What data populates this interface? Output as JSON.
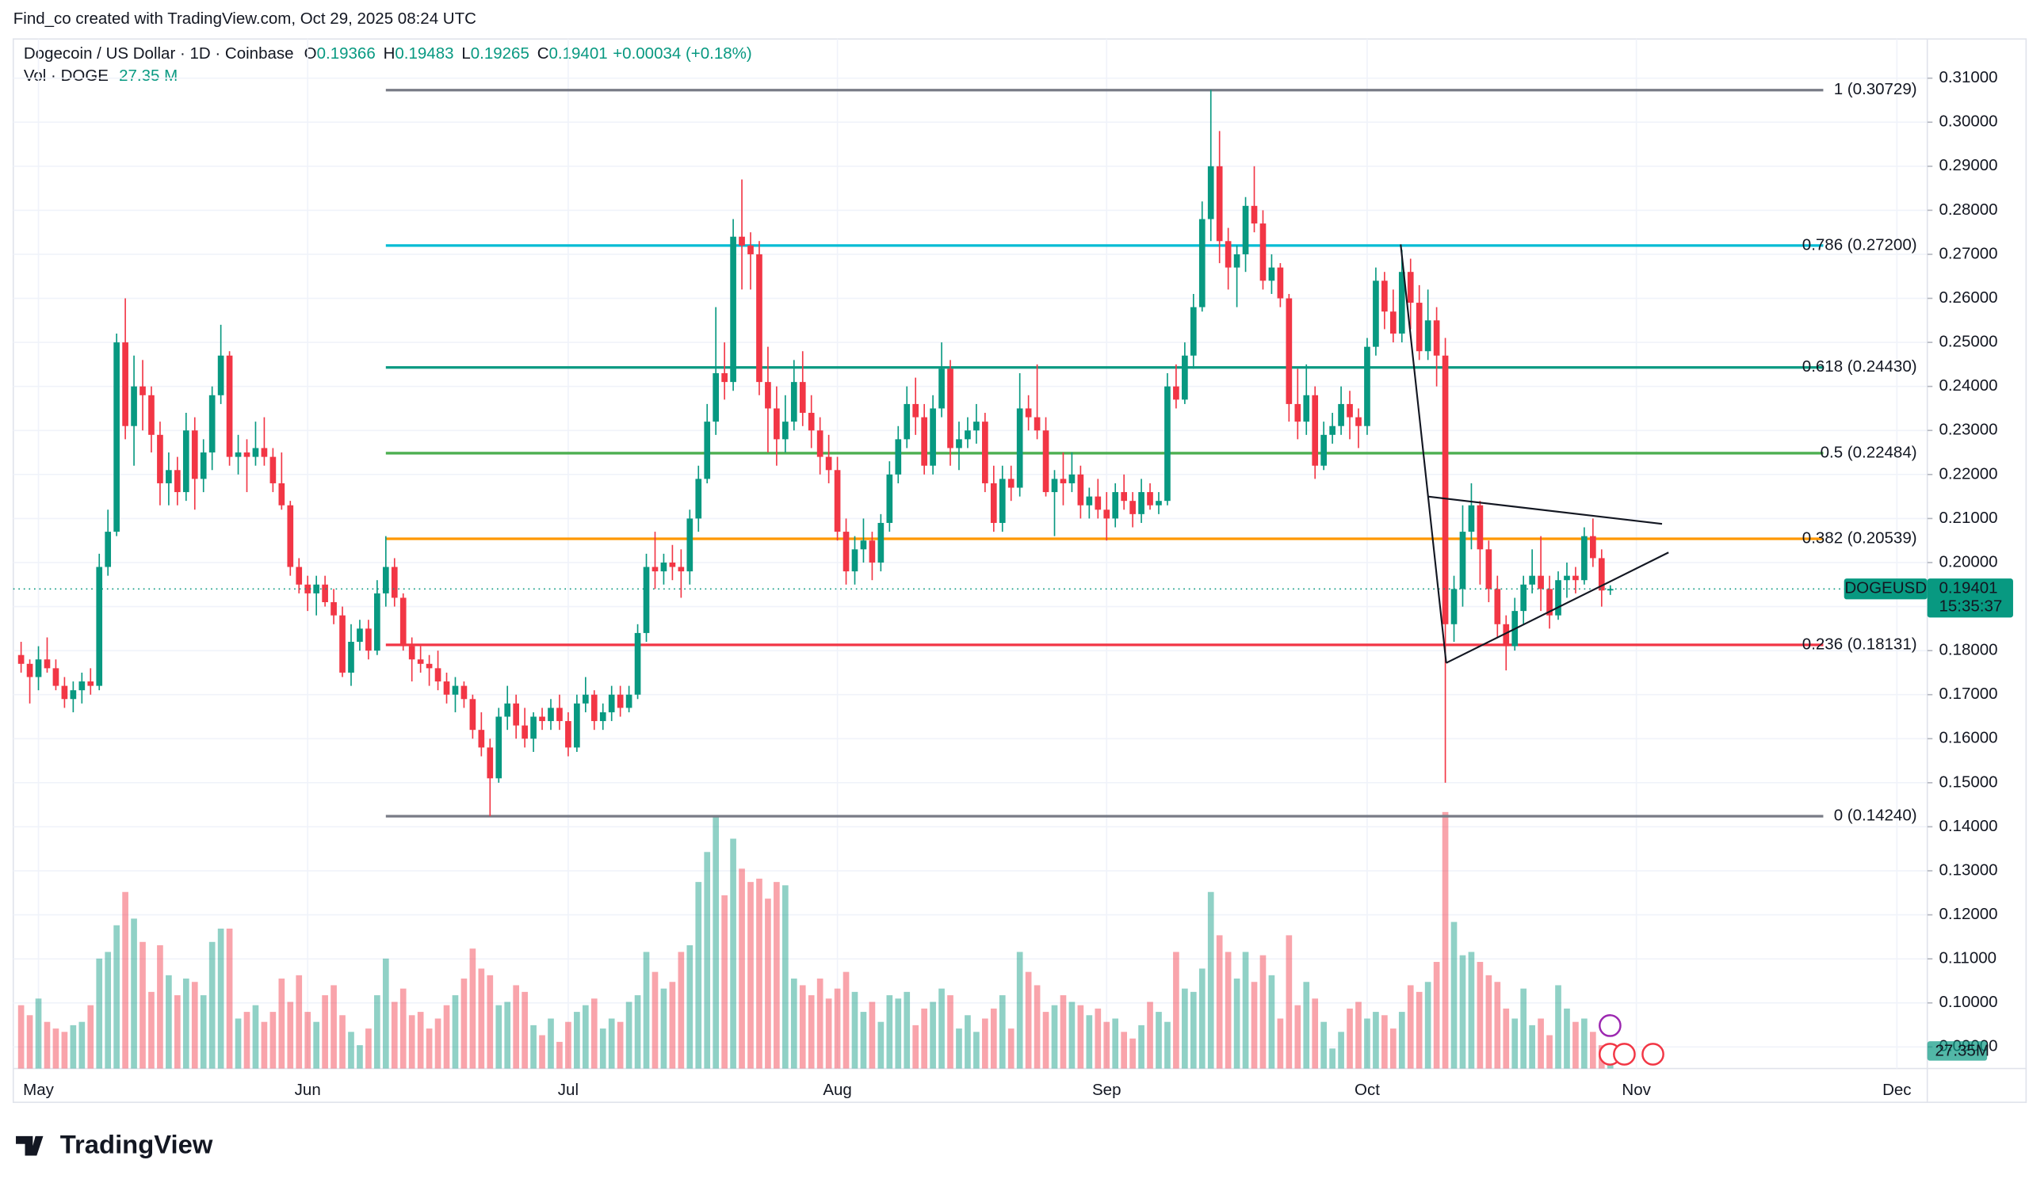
{
  "header": {
    "credit": "Find_co created with TradingView.com, Oct 29, 2025 08:24 UTC",
    "symbol": "Dogecoin / US Dollar · 1D · Coinbase",
    "o": "O",
    "h": "H",
    "l": "L",
    "c": "C",
    "change": "+0.00034 (+0.18%)",
    "vol_title": "Vol · DOGE",
    "vol_value": "27.35 M",
    "ticker": "DOGEUSD",
    "countdown": "15:35:37",
    "volume_badge": "27.35M",
    "logo": "TradingView"
  },
  "chart_data": {
    "type": "candlestick",
    "up_color": "#089981",
    "down_color": "#f23645",
    "grid": true,
    "ylim": [
      0.0851,
      0.3248
    ],
    "yticks": [
      {
        "value": 0.31,
        "label": "0.31000"
      },
      {
        "value": 0.3,
        "label": "0.30000"
      },
      {
        "value": 0.29,
        "label": "0.29000"
      },
      {
        "value": 0.28,
        "label": "0.28000"
      },
      {
        "value": 0.27,
        "label": "0.27000"
      },
      {
        "value": 0.26,
        "label": "0.26000"
      },
      {
        "value": 0.25,
        "label": "0.25000"
      },
      {
        "value": 0.24,
        "label": "0.24000"
      },
      {
        "value": 0.23,
        "label": "0.23000"
      },
      {
        "value": 0.22,
        "label": "0.22000"
      },
      {
        "value": 0.21,
        "label": "0.21000"
      },
      {
        "value": 0.2,
        "label": "0.20000"
      },
      {
        "value": 0.19,
        "label": "0.19000"
      },
      {
        "value": 0.18,
        "label": "0.18000"
      },
      {
        "value": 0.17,
        "label": "0.17000"
      },
      {
        "value": 0.16,
        "label": "0.16000"
      },
      {
        "value": 0.15,
        "label": "0.15000"
      },
      {
        "value": 0.14,
        "label": "0.14000"
      },
      {
        "value": 0.13,
        "label": "0.13000"
      },
      {
        "value": 0.12,
        "label": "0.12000"
      },
      {
        "value": 0.11,
        "label": "0.11000"
      },
      {
        "value": 0.1,
        "label": "0.10000"
      },
      {
        "value": 0.09,
        "label": "0.09000"
      }
    ],
    "xlim": [
      -0.9,
      219.5
    ],
    "xticks": [
      {
        "value": 2,
        "label": "May"
      },
      {
        "value": 33,
        "label": "Jun"
      },
      {
        "value": 63,
        "label": "Jul"
      },
      {
        "value": 94,
        "label": "Aug"
      },
      {
        "value": 125,
        "label": "Sep"
      },
      {
        "value": 155,
        "label": "Oct"
      },
      {
        "value": 186,
        "label": "Nov"
      },
      {
        "value": 216,
        "label": "Dec"
      }
    ],
    "volume_ylim": [
      0,
      400
    ],
    "fib": {
      "prices": [
        0.30729,
        0.272,
        0.2443,
        0.22484,
        0.20539,
        0.18131,
        0.1424
      ],
      "labels": [
        "1 (0.30729)",
        "0.786 (0.27200)",
        "0.618 (0.24430)",
        "0.5 (0.22484)",
        "0.382 (0.20539)",
        "0.236 (0.18131)",
        "0 (0.14240)"
      ],
      "colors": [
        "#787b86",
        "#00bcd4",
        "#089981",
        "#4caf50",
        "#ff9800",
        "#f23645",
        "#787b86"
      ]
    },
    "ohlc": [
      [
        0.179,
        0.182,
        0.175,
        0.177
      ],
      [
        0.177,
        0.178,
        0.168,
        0.174
      ],
      [
        0.174,
        0.181,
        0.171,
        0.178
      ],
      [
        0.178,
        0.183,
        0.175,
        0.176
      ],
      [
        0.176,
        0.178,
        0.171,
        0.172
      ],
      [
        0.172,
        0.174,
        0.167,
        0.169
      ],
      [
        0.169,
        0.173,
        0.166,
        0.171
      ],
      [
        0.171,
        0.175,
        0.168,
        0.173
      ],
      [
        0.173,
        0.176,
        0.17,
        0.172
      ],
      [
        0.172,
        0.202,
        0.171,
        0.199
      ],
      [
        0.199,
        0.212,
        0.197,
        0.207
      ],
      [
        0.207,
        0.252,
        0.206,
        0.25
      ],
      [
        0.25,
        0.26,
        0.228,
        0.231
      ],
      [
        0.231,
        0.247,
        0.222,
        0.24
      ],
      [
        0.24,
        0.246,
        0.23,
        0.238
      ],
      [
        0.238,
        0.24,
        0.225,
        0.229
      ],
      [
        0.229,
        0.232,
        0.213,
        0.218
      ],
      [
        0.218,
        0.225,
        0.213,
        0.221
      ],
      [
        0.221,
        0.224,
        0.213,
        0.216
      ],
      [
        0.216,
        0.234,
        0.214,
        0.23
      ],
      [
        0.23,
        0.233,
        0.212,
        0.219
      ],
      [
        0.219,
        0.228,
        0.216,
        0.225
      ],
      [
        0.225,
        0.24,
        0.221,
        0.238
      ],
      [
        0.238,
        0.254,
        0.236,
        0.247
      ],
      [
        0.247,
        0.248,
        0.222,
        0.224
      ],
      [
        0.224,
        0.229,
        0.22,
        0.225
      ],
      [
        0.225,
        0.228,
        0.216,
        0.224
      ],
      [
        0.224,
        0.232,
        0.222,
        0.226
      ],
      [
        0.226,
        0.233,
        0.222,
        0.224
      ],
      [
        0.224,
        0.226,
        0.216,
        0.218
      ],
      [
        0.218,
        0.225,
        0.212,
        0.213
      ],
      [
        0.213,
        0.214,
        0.197,
        0.199
      ],
      [
        0.199,
        0.201,
        0.193,
        0.195
      ],
      [
        0.195,
        0.197,
        0.189,
        0.193
      ],
      [
        0.193,
        0.197,
        0.188,
        0.195
      ],
      [
        0.195,
        0.197,
        0.19,
        0.191
      ],
      [
        0.191,
        0.194,
        0.186,
        0.188
      ],
      [
        0.188,
        0.19,
        0.174,
        0.175
      ],
      [
        0.175,
        0.186,
        0.172,
        0.182
      ],
      [
        0.182,
        0.187,
        0.18,
        0.185
      ],
      [
        0.185,
        0.187,
        0.178,
        0.18
      ],
      [
        0.18,
        0.196,
        0.179,
        0.193
      ],
      [
        0.193,
        0.206,
        0.19,
        0.199
      ],
      [
        0.199,
        0.201,
        0.19,
        0.192
      ],
      [
        0.192,
        0.193,
        0.18,
        0.181
      ],
      [
        0.181,
        0.183,
        0.173,
        0.178
      ],
      [
        0.178,
        0.181,
        0.175,
        0.177
      ],
      [
        0.177,
        0.179,
        0.172,
        0.176
      ],
      [
        0.176,
        0.18,
        0.171,
        0.173
      ],
      [
        0.173,
        0.175,
        0.168,
        0.17
      ],
      [
        0.17,
        0.174,
        0.166,
        0.172
      ],
      [
        0.172,
        0.173,
        0.167,
        0.169
      ],
      [
        0.169,
        0.17,
        0.16,
        0.162
      ],
      [
        0.162,
        0.166,
        0.156,
        0.158
      ],
      [
        0.158,
        0.16,
        0.1424,
        0.151
      ],
      [
        0.151,
        0.167,
        0.15,
        0.165
      ],
      [
        0.165,
        0.172,
        0.162,
        0.168
      ],
      [
        0.168,
        0.17,
        0.16,
        0.163
      ],
      [
        0.163,
        0.167,
        0.158,
        0.16
      ],
      [
        0.16,
        0.166,
        0.157,
        0.165
      ],
      [
        0.165,
        0.167,
        0.162,
        0.164
      ],
      [
        0.164,
        0.169,
        0.162,
        0.167
      ],
      [
        0.167,
        0.17,
        0.162,
        0.164
      ],
      [
        0.164,
        0.166,
        0.156,
        0.158
      ],
      [
        0.158,
        0.17,
        0.157,
        0.168
      ],
      [
        0.168,
        0.174,
        0.166,
        0.17
      ],
      [
        0.17,
        0.171,
        0.162,
        0.164
      ],
      [
        0.164,
        0.168,
        0.162,
        0.166
      ],
      [
        0.166,
        0.172,
        0.164,
        0.17
      ],
      [
        0.17,
        0.172,
        0.165,
        0.167
      ],
      [
        0.167,
        0.172,
        0.166,
        0.17
      ],
      [
        0.17,
        0.186,
        0.169,
        0.184
      ],
      [
        0.184,
        0.202,
        0.182,
        0.199
      ],
      [
        0.199,
        0.207,
        0.194,
        0.198
      ],
      [
        0.198,
        0.202,
        0.195,
        0.2
      ],
      [
        0.2,
        0.204,
        0.196,
        0.199
      ],
      [
        0.199,
        0.203,
        0.192,
        0.198
      ],
      [
        0.198,
        0.212,
        0.195,
        0.21
      ],
      [
        0.21,
        0.222,
        0.207,
        0.219
      ],
      [
        0.219,
        0.236,
        0.218,
        0.232
      ],
      [
        0.232,
        0.258,
        0.229,
        0.243
      ],
      [
        0.243,
        0.25,
        0.237,
        0.241
      ],
      [
        0.241,
        0.278,
        0.239,
        0.274
      ],
      [
        0.274,
        0.287,
        0.262,
        0.272
      ],
      [
        0.272,
        0.275,
        0.262,
        0.27
      ],
      [
        0.27,
        0.273,
        0.238,
        0.241
      ],
      [
        0.241,
        0.249,
        0.225,
        0.235
      ],
      [
        0.235,
        0.24,
        0.222,
        0.228
      ],
      [
        0.228,
        0.238,
        0.225,
        0.232
      ],
      [
        0.232,
        0.246,
        0.23,
        0.241
      ],
      [
        0.241,
        0.248,
        0.231,
        0.234
      ],
      [
        0.234,
        0.238,
        0.226,
        0.23
      ],
      [
        0.23,
        0.233,
        0.22,
        0.224
      ],
      [
        0.224,
        0.229,
        0.218,
        0.221
      ],
      [
        0.221,
        0.224,
        0.205,
        0.207
      ],
      [
        0.207,
        0.21,
        0.195,
        0.198
      ],
      [
        0.198,
        0.206,
        0.195,
        0.203
      ],
      [
        0.203,
        0.21,
        0.2,
        0.205
      ],
      [
        0.205,
        0.207,
        0.196,
        0.2
      ],
      [
        0.2,
        0.211,
        0.198,
        0.209
      ],
      [
        0.209,
        0.223,
        0.207,
        0.22
      ],
      [
        0.22,
        0.231,
        0.218,
        0.228
      ],
      [
        0.228,
        0.24,
        0.226,
        0.236
      ],
      [
        0.236,
        0.242,
        0.229,
        0.233
      ],
      [
        0.233,
        0.236,
        0.22,
        0.222
      ],
      [
        0.222,
        0.238,
        0.22,
        0.235
      ],
      [
        0.235,
        0.25,
        0.233,
        0.244
      ],
      [
        0.244,
        0.246,
        0.222,
        0.226
      ],
      [
        0.226,
        0.232,
        0.221,
        0.228
      ],
      [
        0.228,
        0.233,
        0.226,
        0.23
      ],
      [
        0.23,
        0.236,
        0.227,
        0.232
      ],
      [
        0.232,
        0.234,
        0.216,
        0.218
      ],
      [
        0.218,
        0.222,
        0.207,
        0.209
      ],
      [
        0.209,
        0.222,
        0.207,
        0.219
      ],
      [
        0.219,
        0.222,
        0.214,
        0.217
      ],
      [
        0.217,
        0.243,
        0.215,
        0.235
      ],
      [
        0.235,
        0.238,
        0.23,
        0.233
      ],
      [
        0.233,
        0.245,
        0.228,
        0.23
      ],
      [
        0.23,
        0.233,
        0.215,
        0.216
      ],
      [
        0.216,
        0.221,
        0.206,
        0.219
      ],
      [
        0.219,
        0.225,
        0.213,
        0.218
      ],
      [
        0.218,
        0.225,
        0.216,
        0.22
      ],
      [
        0.22,
        0.222,
        0.21,
        0.213
      ],
      [
        0.213,
        0.217,
        0.21,
        0.215
      ],
      [
        0.215,
        0.219,
        0.21,
        0.212
      ],
      [
        0.212,
        0.216,
        0.205,
        0.21
      ],
      [
        0.21,
        0.218,
        0.208,
        0.216
      ],
      [
        0.216,
        0.22,
        0.212,
        0.214
      ],
      [
        0.214,
        0.216,
        0.208,
        0.211
      ],
      [
        0.211,
        0.219,
        0.209,
        0.216
      ],
      [
        0.216,
        0.218,
        0.212,
        0.213
      ],
      [
        0.213,
        0.216,
        0.211,
        0.214
      ],
      [
        0.214,
        0.243,
        0.213,
        0.24
      ],
      [
        0.24,
        0.245,
        0.235,
        0.237
      ],
      [
        0.237,
        0.25,
        0.236,
        0.247
      ],
      [
        0.247,
        0.261,
        0.244,
        0.258
      ],
      [
        0.258,
        0.282,
        0.257,
        0.278
      ],
      [
        0.278,
        0.3073,
        0.273,
        0.29
      ],
      [
        0.29,
        0.298,
        0.268,
        0.273
      ],
      [
        0.273,
        0.276,
        0.262,
        0.267
      ],
      [
        0.267,
        0.272,
        0.258,
        0.27
      ],
      [
        0.27,
        0.283,
        0.266,
        0.281
      ],
      [
        0.281,
        0.29,
        0.275,
        0.277
      ],
      [
        0.277,
        0.28,
        0.262,
        0.264
      ],
      [
        0.264,
        0.27,
        0.261,
        0.267
      ],
      [
        0.267,
        0.268,
        0.258,
        0.26
      ],
      [
        0.26,
        0.261,
        0.232,
        0.236
      ],
      [
        0.236,
        0.244,
        0.228,
        0.232
      ],
      [
        0.232,
        0.245,
        0.229,
        0.238
      ],
      [
        0.238,
        0.24,
        0.219,
        0.222
      ],
      [
        0.222,
        0.232,
        0.221,
        0.229
      ],
      [
        0.229,
        0.234,
        0.227,
        0.231
      ],
      [
        0.231,
        0.24,
        0.229,
        0.236
      ],
      [
        0.236,
        0.239,
        0.228,
        0.233
      ],
      [
        0.233,
        0.235,
        0.226,
        0.231
      ],
      [
        0.231,
        0.251,
        0.229,
        0.249
      ],
      [
        0.249,
        0.267,
        0.247,
        0.264
      ],
      [
        0.264,
        0.266,
        0.253,
        0.257
      ],
      [
        0.257,
        0.262,
        0.25,
        0.252
      ],
      [
        0.252,
        0.271,
        0.25,
        0.266
      ],
      [
        0.266,
        0.269,
        0.253,
        0.259
      ],
      [
        0.259,
        0.263,
        0.246,
        0.248
      ],
      [
        0.248,
        0.262,
        0.246,
        0.255
      ],
      [
        0.255,
        0.258,
        0.24,
        0.247
      ],
      [
        0.247,
        0.251,
        0.15,
        0.186
      ],
      [
        0.186,
        0.197,
        0.182,
        0.194
      ],
      [
        0.194,
        0.213,
        0.19,
        0.207
      ],
      [
        0.207,
        0.218,
        0.203,
        0.213
      ],
      [
        0.213,
        0.214,
        0.195,
        0.203
      ],
      [
        0.203,
        0.205,
        0.191,
        0.194
      ],
      [
        0.194,
        0.197,
        0.183,
        0.186
      ],
      [
        0.186,
        0.188,
        0.1755,
        0.181
      ],
      [
        0.181,
        0.192,
        0.18,
        0.189
      ],
      [
        0.189,
        0.197,
        0.186,
        0.195
      ],
      [
        0.195,
        0.203,
        0.193,
        0.197
      ],
      [
        0.197,
        0.206,
        0.189,
        0.194
      ],
      [
        0.194,
        0.197,
        0.185,
        0.188
      ],
      [
        0.188,
        0.198,
        0.187,
        0.196
      ],
      [
        0.196,
        0.2,
        0.192,
        0.197
      ],
      [
        0.197,
        0.199,
        0.193,
        0.196
      ],
      [
        0.196,
        0.208,
        0.195,
        0.206
      ],
      [
        0.206,
        0.21,
        0.199,
        0.201
      ],
      [
        0.201,
        0.203,
        0.19,
        0.19366
      ],
      [
        0.19366,
        0.19483,
        0.19265,
        0.19401
      ]
    ],
    "volume": [
      95,
      80,
      105,
      70,
      60,
      55,
      65,
      70,
      95,
      165,
      175,
      215,
      265,
      225,
      190,
      115,
      185,
      140,
      110,
      135,
      130,
      110,
      190,
      210,
      210,
      75,
      85,
      95,
      70,
      85,
      135,
      100,
      140,
      85,
      70,
      110,
      125,
      80,
      55,
      35,
      60,
      110,
      165,
      100,
      120,
      80,
      85,
      60,
      75,
      95,
      110,
      135,
      180,
      150,
      140,
      95,
      100,
      125,
      115,
      65,
      50,
      75,
      40,
      70,
      85,
      95,
      105,
      60,
      75,
      70,
      100,
      110,
      175,
      145,
      120,
      130,
      175,
      185,
      280,
      325,
      380,
      260,
      345,
      300,
      280,
      285,
      255,
      280,
      275,
      135,
      125,
      110,
      135,
      105,
      120,
      145,
      115,
      85,
      100,
      70,
      110,
      105,
      115,
      65,
      90,
      100,
      120,
      110,
      60,
      80,
      55,
      75,
      90,
      110,
      60,
      175,
      145,
      125,
      85,
      95,
      110,
      100,
      95,
      80,
      90,
      70,
      75,
      55,
      45,
      65,
      100,
      85,
      70,
      175,
      120,
      115,
      150,
      265,
      200,
      175,
      135,
      175,
      130,
      170,
      140,
      75,
      200,
      95,
      130,
      105,
      70,
      30,
      55,
      90,
      100,
      75,
      85,
      80,
      60,
      85,
      125,
      115,
      130,
      160,
      385,
      220,
      170,
      175,
      160,
      140,
      130,
      90,
      75,
      120,
      65,
      75,
      50,
      125,
      90,
      70,
      75,
      55,
      35,
      27.35
    ]
  }
}
